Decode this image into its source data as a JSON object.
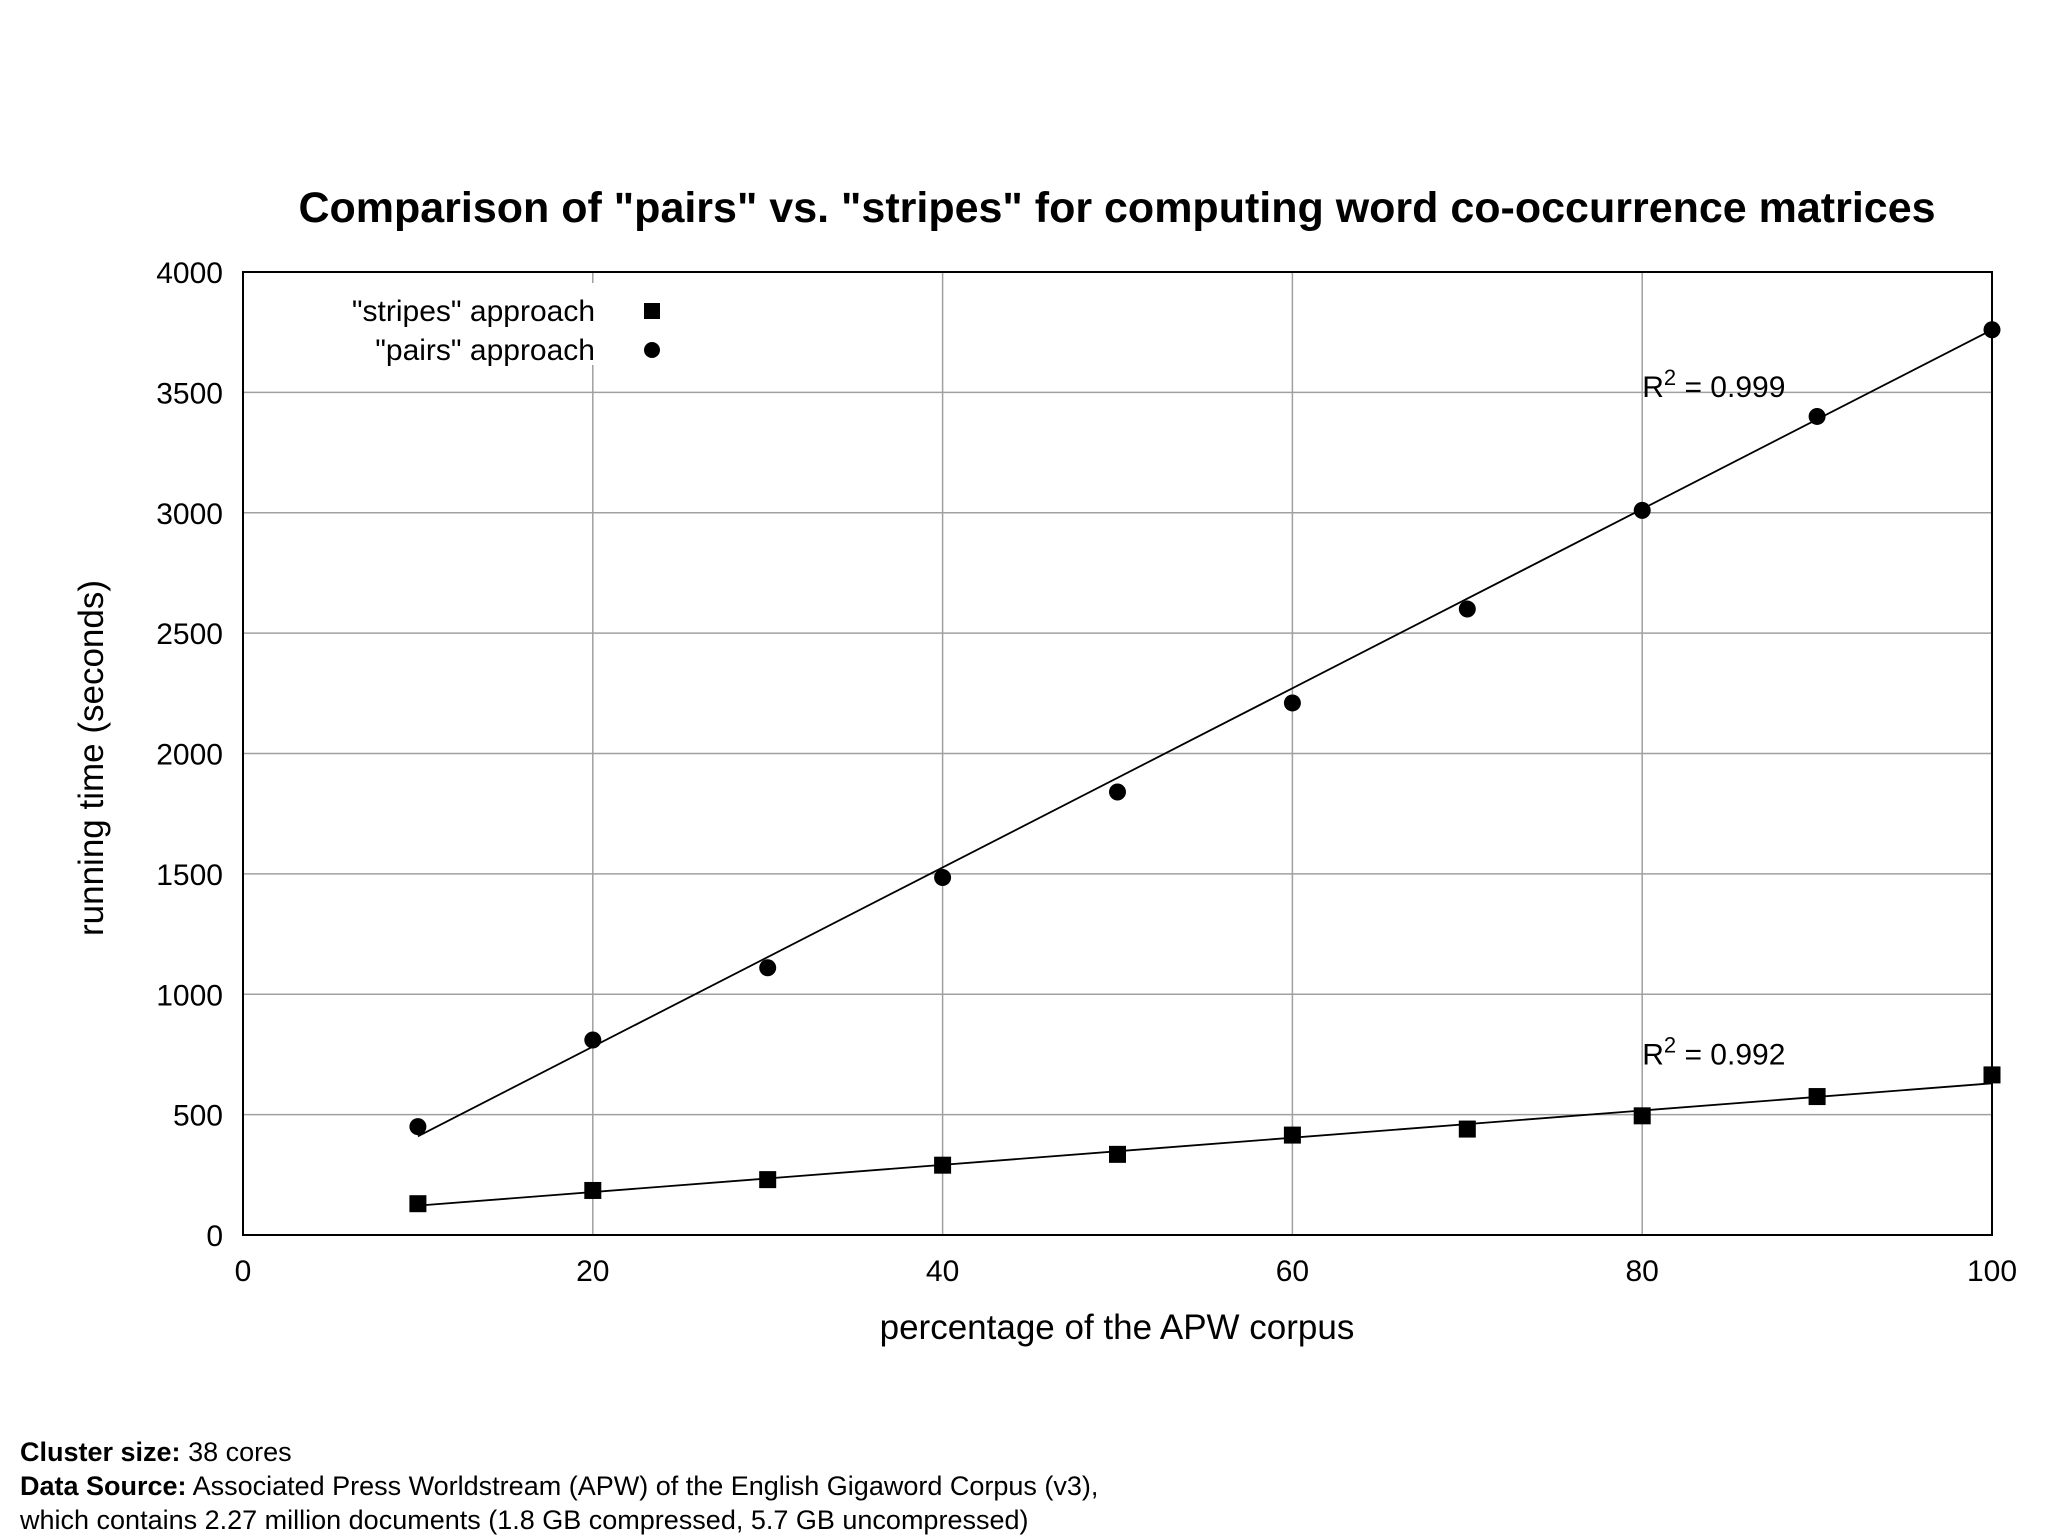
{
  "chart_data": {
    "type": "scatter",
    "title": "Comparison of \"pairs\" vs. \"stripes\" for computing word co-occurrence matrices",
    "xlabel": "percentage of the APW corpus",
    "ylabel": "running time (seconds)",
    "xlim": [
      0,
      100
    ],
    "ylim": [
      0,
      4000
    ],
    "x_ticks": [
      "0",
      "20",
      "40",
      "60",
      "80",
      "100"
    ],
    "y_ticks": [
      "0",
      "500",
      "1000",
      "1500",
      "2000",
      "2500",
      "3000",
      "3500",
      "4000"
    ],
    "grid": true,
    "legend_position": "top-left",
    "series": [
      {
        "name": "\"stripes\" approach",
        "marker": "square",
        "color": "#000000",
        "x": [
          10,
          20,
          30,
          40,
          50,
          60,
          70,
          80,
          90,
          100
        ],
        "y": [
          130,
          185,
          230,
          290,
          335,
          415,
          440,
          495,
          575,
          665
        ],
        "fit": {
          "x": [
            10,
            100
          ],
          "y": [
            122,
            630
          ]
        },
        "r2_label": "R",
        "r2_sup": "2",
        "r2_value": " = 0.992"
      },
      {
        "name": "\"pairs\" approach",
        "marker": "circle",
        "color": "#000000",
        "x": [
          10,
          20,
          30,
          40,
          50,
          60,
          70,
          80,
          90,
          100
        ],
        "y": [
          450,
          810,
          1110,
          1485,
          1840,
          2210,
          2600,
          3010,
          3400,
          3760
        ],
        "fit": {
          "x": [
            10,
            100
          ],
          "y": [
            410,
            3760
          ]
        },
        "r2_label": "R",
        "r2_sup": "2",
        "r2_value": " = 0.999"
      }
    ]
  },
  "footnotes": {
    "cluster_label": "Cluster size:",
    "cluster_value": " 38 cores",
    "source_label": "Data Source:",
    "source_value": " Associated Press Worldstream (APW) of the English Gigaword Corpus (v3),",
    "source_line2": "which contains 2.27 million documents (1.8 GB compressed, 5.7 GB uncompressed)"
  }
}
